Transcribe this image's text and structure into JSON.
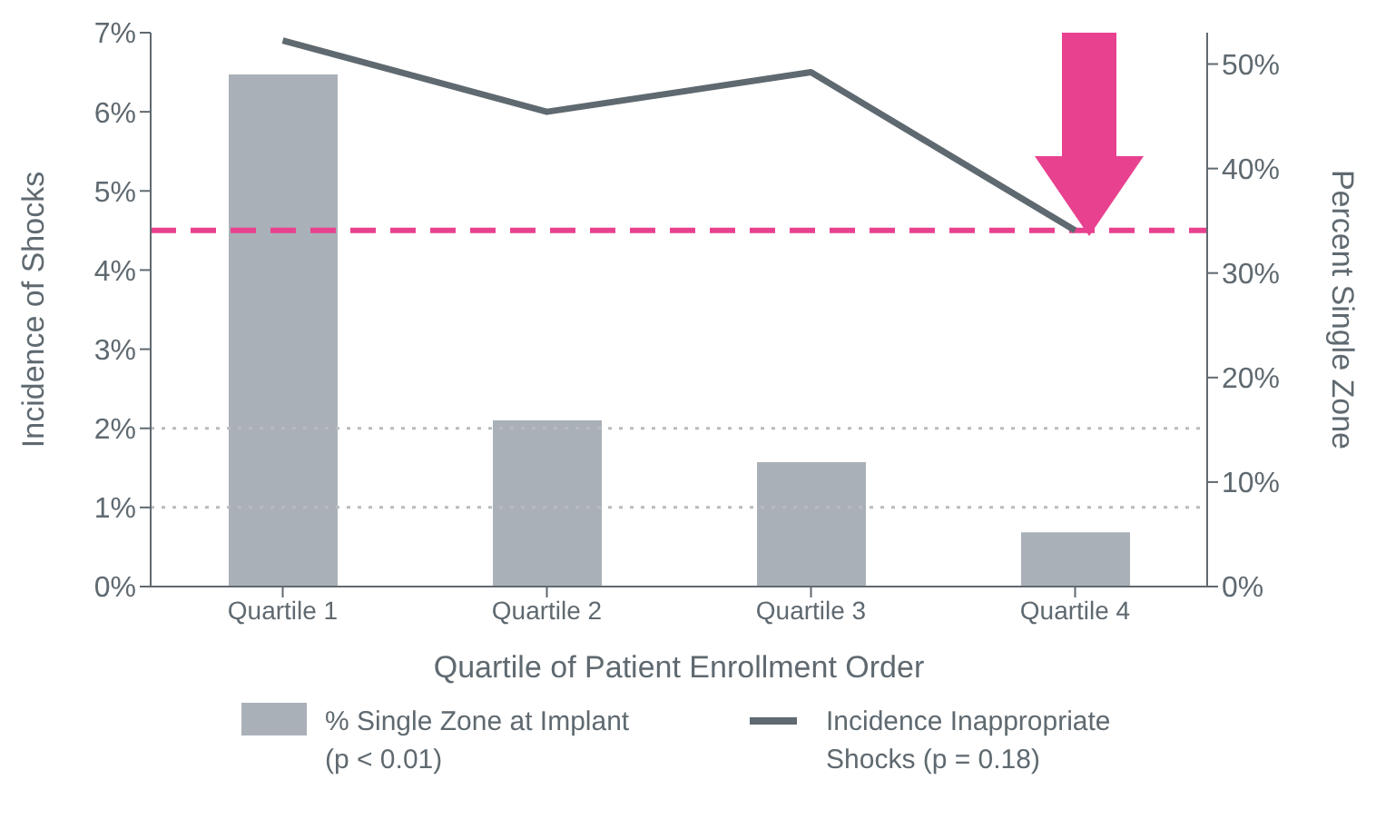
{
  "chart_data": {
    "type": "bar",
    "xlabel": "Quartile of Patient Enrollment Order",
    "ylabel": "Incidence of Shocks",
    "y2label": "Percent Single Zone",
    "categories": [
      "Quartile 1",
      "Quartile 2",
      "Quartile 3",
      "Quartile 4"
    ],
    "series": [
      {
        "name": "% Single Zone at Implant (p < 0.01)",
        "axis": "y2",
        "color": "#aab0b7",
        "values": [
          49,
          15.9,
          11.9,
          5.2
        ]
      },
      {
        "name": "Incidence Inappropriate Shocks (p = 0.18)",
        "type": "line",
        "color": "#5f6970",
        "values": [
          6.9,
          6.0,
          6.5,
          4.5
        ]
      }
    ],
    "ylim": [
      0,
      7
    ],
    "yticks": [
      {
        "value": 0,
        "label": "0%"
      },
      {
        "value": 1,
        "label": "1%"
      },
      {
        "value": 2,
        "label": "2%"
      },
      {
        "value": 3,
        "label": "3%"
      },
      {
        "value": 4,
        "label": "4%"
      },
      {
        "value": 5,
        "label": "5%"
      },
      {
        "value": 6,
        "label": "6%"
      },
      {
        "value": 7,
        "label": "7%"
      }
    ],
    "y2lim": [
      0,
      53
    ],
    "y2ticks": [
      {
        "value": 0,
        "label": "0%"
      },
      {
        "value": 10,
        "label": "10%"
      },
      {
        "value": 20,
        "label": "20%"
      },
      {
        "value": 30,
        "label": "30%"
      },
      {
        "value": 40,
        "label": "40%"
      },
      {
        "value": 50,
        "label": "50%"
      }
    ],
    "ref_lines": [
      {
        "axis": "y",
        "value": 4.5,
        "color": "#e8418f",
        "line_style": "dashed"
      },
      {
        "axis": "y",
        "value": 1,
        "color": "#b8bcc0",
        "line_style": "dotted"
      },
      {
        "axis": "y",
        "value": 2,
        "color": "#b8bcc0",
        "line_style": "dotted"
      }
    ],
    "legend": "bottom",
    "marker": "none"
  }
}
